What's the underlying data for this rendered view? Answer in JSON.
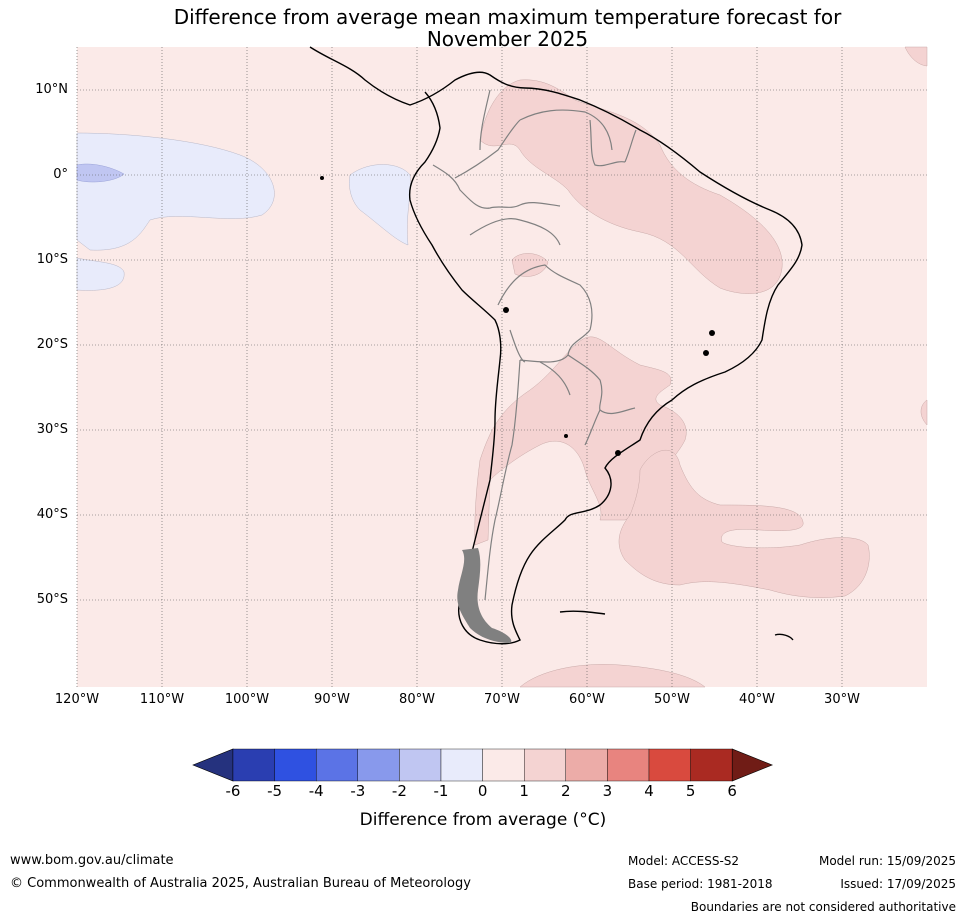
{
  "title": {
    "line1": "Difference from average mean maximum temperature forecast for",
    "line2": "November 2025"
  },
  "map": {
    "lat_labels": [
      "10°N",
      "0°",
      "10°S",
      "20°S",
      "30°S",
      "40°S",
      "50°S"
    ],
    "lon_labels": [
      "120°W",
      "110°W",
      "100°W",
      "90°W",
      "80°W",
      "70°W",
      "60°W",
      "50°W",
      "40°W",
      "30°W"
    ],
    "background_fill": "#fbeae8",
    "warm_fill": "#f4d3d2",
    "cool_fill": "#e8ebfb",
    "cooler_fill": "#c0c6f2",
    "coastline_color": "#000000",
    "border_color": "#808080"
  },
  "colorbar": {
    "ticks": [
      "-6",
      "-5",
      "-4",
      "-3",
      "-2",
      "-1",
      "0",
      "1",
      "2",
      "3",
      "4",
      "5",
      "6"
    ],
    "colors": [
      "#25327e",
      "#2a3eb1",
      "#2f51e1",
      "#5b73e6",
      "#8899ec",
      "#c0c6f2",
      "#e8ebfb",
      "#fbeae8",
      "#f4d3d2",
      "#ecaca8",
      "#e8847f",
      "#d94a3e",
      "#aa2a22",
      "#701c16"
    ],
    "label": "Difference from average (°C)"
  },
  "footer": {
    "website": "www.bom.gov.au/climate",
    "copyright": "© Commonwealth of Australia 2025, Australian Bureau of Meteorology",
    "model": "Model: ACCESS-S2",
    "base_period": "Base period: 1981-2018",
    "model_run": "Model run: 15/09/2025",
    "issued": "Issued: 17/09/2025",
    "disclaimer": "Boundaries are not considered authoritative"
  }
}
